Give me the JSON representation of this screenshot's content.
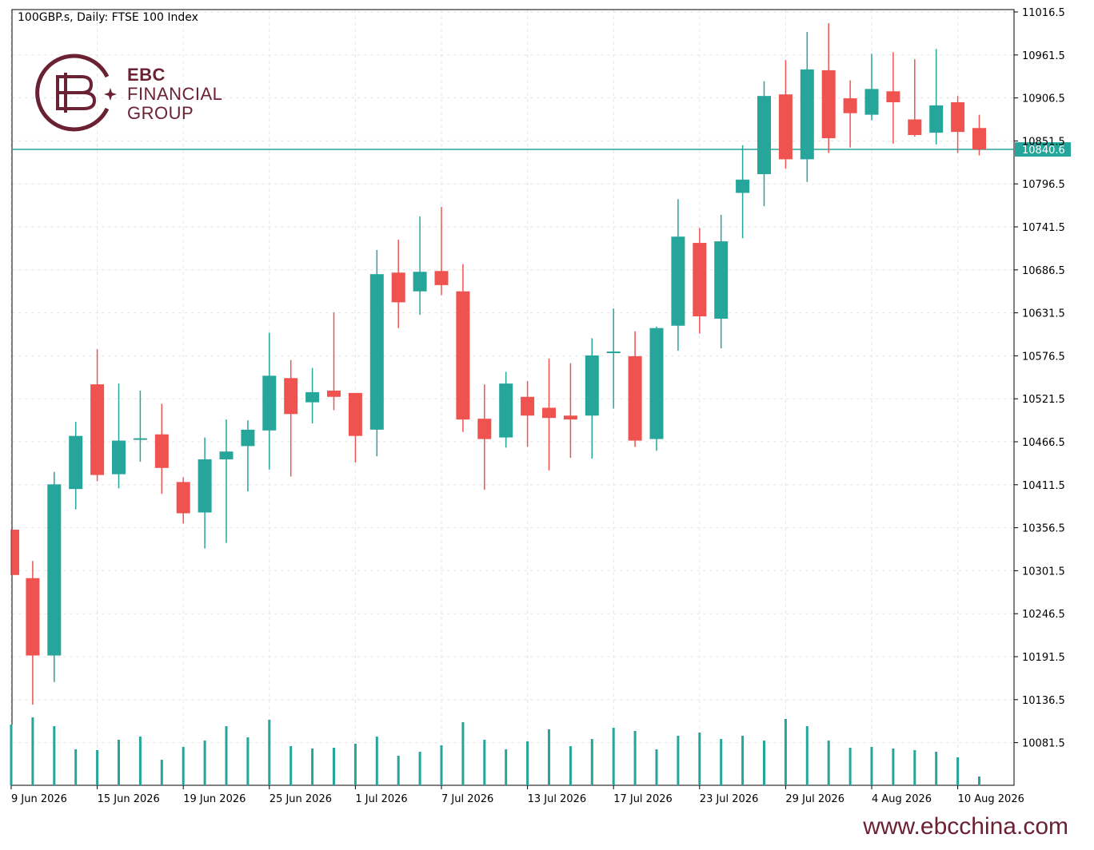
{
  "header": {
    "symbol_title": "100GBP.s, Daily:  FTSE 100 Index"
  },
  "logo": {
    "line1": "EBC",
    "line2": "FINANCIAL",
    "line3": "GROUP",
    "color": "#6b2134"
  },
  "footer": {
    "url": "www.ebcchina.com"
  },
  "colors": {
    "bull": "#26a69a",
    "bear": "#ef5350",
    "volume": "#26a69a",
    "grid": "#e6e6e6",
    "price_line": "#26a69a"
  },
  "chart_data": {
    "type": "candlestick",
    "title": "100GBP.s, Daily:  FTSE 100 Index",
    "current_price": 10840.6,
    "current_price_label": "10840.6",
    "ylim": [
      10028,
      11016.5
    ],
    "y_ticks": [
      "11016.5",
      "10961.5",
      "10906.5",
      "10851.5",
      "10796.5",
      "10741.5",
      "10686.5",
      "10631.5",
      "10576.5",
      "10521.5",
      "10466.5",
      "10411.5",
      "10356.5",
      "10301.5",
      "10246.5",
      "10191.5",
      "10136.5",
      "10081.5"
    ],
    "y_tick_values": [
      11016.5,
      10961.5,
      10906.5,
      10851.5,
      10796.5,
      10741.5,
      10686.5,
      10631.5,
      10576.5,
      10521.5,
      10466.5,
      10411.5,
      10356.5,
      10301.5,
      10246.5,
      10191.5,
      10136.5,
      10081.5
    ],
    "x_tick_labels": [
      {
        "index": 0,
        "label": "9 Jun 2026"
      },
      {
        "index": 4,
        "label": "15 Jun 2026"
      },
      {
        "index": 8,
        "label": "19 Jun 2026"
      },
      {
        "index": 12,
        "label": "25 Jun 2026"
      },
      {
        "index": 16,
        "label": "1 Jul 2026"
      },
      {
        "index": 20,
        "label": "7 Jul 2026"
      },
      {
        "index": 24,
        "label": "13 Jul 2026"
      },
      {
        "index": 28,
        "label": "17 Jul 2026"
      },
      {
        "index": 32,
        "label": "23 Jul 2026"
      },
      {
        "index": 36,
        "label": "29 Jul 2026"
      },
      {
        "index": 40,
        "label": "4 Aug 2026"
      },
      {
        "index": 44,
        "label": "10 Aug 2026"
      }
    ],
    "candles": [
      {
        "o": 10354,
        "h": 10354,
        "l": 10296,
        "c": 10296
      },
      {
        "o": 10292,
        "h": 10314,
        "l": 10130,
        "c": 10193
      },
      {
        "o": 10193,
        "h": 10428,
        "l": 10159,
        "c": 10412
      },
      {
        "o": 10406,
        "h": 10492,
        "l": 10380,
        "c": 10474
      },
      {
        "o": 10540,
        "h": 10585,
        "l": 10416,
        "c": 10424
      },
      {
        "o": 10425,
        "h": 10541,
        "l": 10407,
        "c": 10468
      },
      {
        "o": 10471,
        "h": 10532,
        "l": 10441,
        "c": 10471
      },
      {
        "o": 10476,
        "h": 10515,
        "l": 10400,
        "c": 10433
      },
      {
        "o": 10415,
        "h": 10421,
        "l": 10362,
        "c": 10375
      },
      {
        "o": 10376,
        "h": 10472,
        "l": 10330,
        "c": 10444
      },
      {
        "o": 10444,
        "h": 10495,
        "l": 10337,
        "c": 10454
      },
      {
        "o": 10461,
        "h": 10494,
        "l": 10403,
        "c": 10482
      },
      {
        "o": 10481,
        "h": 10606,
        "l": 10431,
        "c": 10551
      },
      {
        "o": 10548,
        "h": 10571,
        "l": 10422,
        "c": 10502
      },
      {
        "o": 10517,
        "h": 10561,
        "l": 10490,
        "c": 10530
      },
      {
        "o": 10532,
        "h": 10632,
        "l": 10507,
        "c": 10524
      },
      {
        "o": 10529,
        "h": 10529,
        "l": 10440,
        "c": 10474
      },
      {
        "o": 10482,
        "h": 10712,
        "l": 10448,
        "c": 10681
      },
      {
        "o": 10683,
        "h": 10725,
        "l": 10612,
        "c": 10645
      },
      {
        "o": 10659,
        "h": 10755,
        "l": 10629,
        "c": 10684
      },
      {
        "o": 10685,
        "h": 10767,
        "l": 10654,
        "c": 10667
      },
      {
        "o": 10659,
        "h": 10694,
        "l": 10479,
        "c": 10495
      },
      {
        "o": 10496,
        "h": 10540,
        "l": 10405,
        "c": 10470
      },
      {
        "o": 10472,
        "h": 10556,
        "l": 10459,
        "c": 10541
      },
      {
        "o": 10524,
        "h": 10544,
        "l": 10460,
        "c": 10500
      },
      {
        "o": 10510,
        "h": 10573,
        "l": 10430,
        "c": 10497
      },
      {
        "o": 10500,
        "h": 10567,
        "l": 10446,
        "c": 10495
      },
      {
        "o": 10500,
        "h": 10599,
        "l": 10445,
        "c": 10577
      },
      {
        "o": 10580,
        "h": 10637,
        "l": 10509,
        "c": 10582
      },
      {
        "o": 10576,
        "h": 10608,
        "l": 10460,
        "c": 10468
      },
      {
        "o": 10470,
        "h": 10614,
        "l": 10455,
        "c": 10612
      },
      {
        "o": 10615,
        "h": 10777,
        "l": 10583,
        "c": 10729
      },
      {
        "o": 10721,
        "h": 10740,
        "l": 10605,
        "c": 10627
      },
      {
        "o": 10624,
        "h": 10757,
        "l": 10586,
        "c": 10723
      },
      {
        "o": 10785,
        "h": 10846,
        "l": 10727,
        "c": 10802
      },
      {
        "o": 10809,
        "h": 10928,
        "l": 10768,
        "c": 10909
      },
      {
        "o": 10911,
        "h": 10955,
        "l": 10816,
        "c": 10828
      },
      {
        "o": 10828,
        "h": 10991,
        "l": 10799,
        "c": 10943
      },
      {
        "o": 10942,
        "h": 11002,
        "l": 10836,
        "c": 10855
      },
      {
        "o": 10906,
        "h": 10929,
        "l": 10843,
        "c": 10887
      },
      {
        "o": 10885,
        "h": 10963,
        "l": 10878,
        "c": 10918
      },
      {
        "o": 10915,
        "h": 10965,
        "l": 10848,
        "c": 10901
      },
      {
        "o": 10879,
        "h": 10956,
        "l": 10857,
        "c": 10859
      },
      {
        "o": 10862,
        "h": 10969,
        "l": 10847,
        "c": 10897
      },
      {
        "o": 10901,
        "h": 10909,
        "l": 10836,
        "c": 10863
      },
      {
        "o": 10868,
        "h": 10885,
        "l": 10833,
        "c": 10840.6
      }
    ],
    "volume": [
      0.76,
      0.85,
      0.74,
      0.45,
      0.44,
      0.57,
      0.61,
      0.32,
      0.48,
      0.56,
      0.74,
      0.6,
      0.82,
      0.49,
      0.46,
      0.47,
      0.52,
      0.61,
      0.37,
      0.42,
      0.5,
      0.79,
      0.57,
      0.45,
      0.55,
      0.7,
      0.49,
      0.58,
      0.72,
      0.68,
      0.45,
      0.62,
      0.66,
      0.58,
      0.62,
      0.56,
      0.83,
      0.74,
      0.56,
      0.47,
      0.48,
      0.46,
      0.44,
      0.42,
      0.35,
      0.11
    ]
  }
}
